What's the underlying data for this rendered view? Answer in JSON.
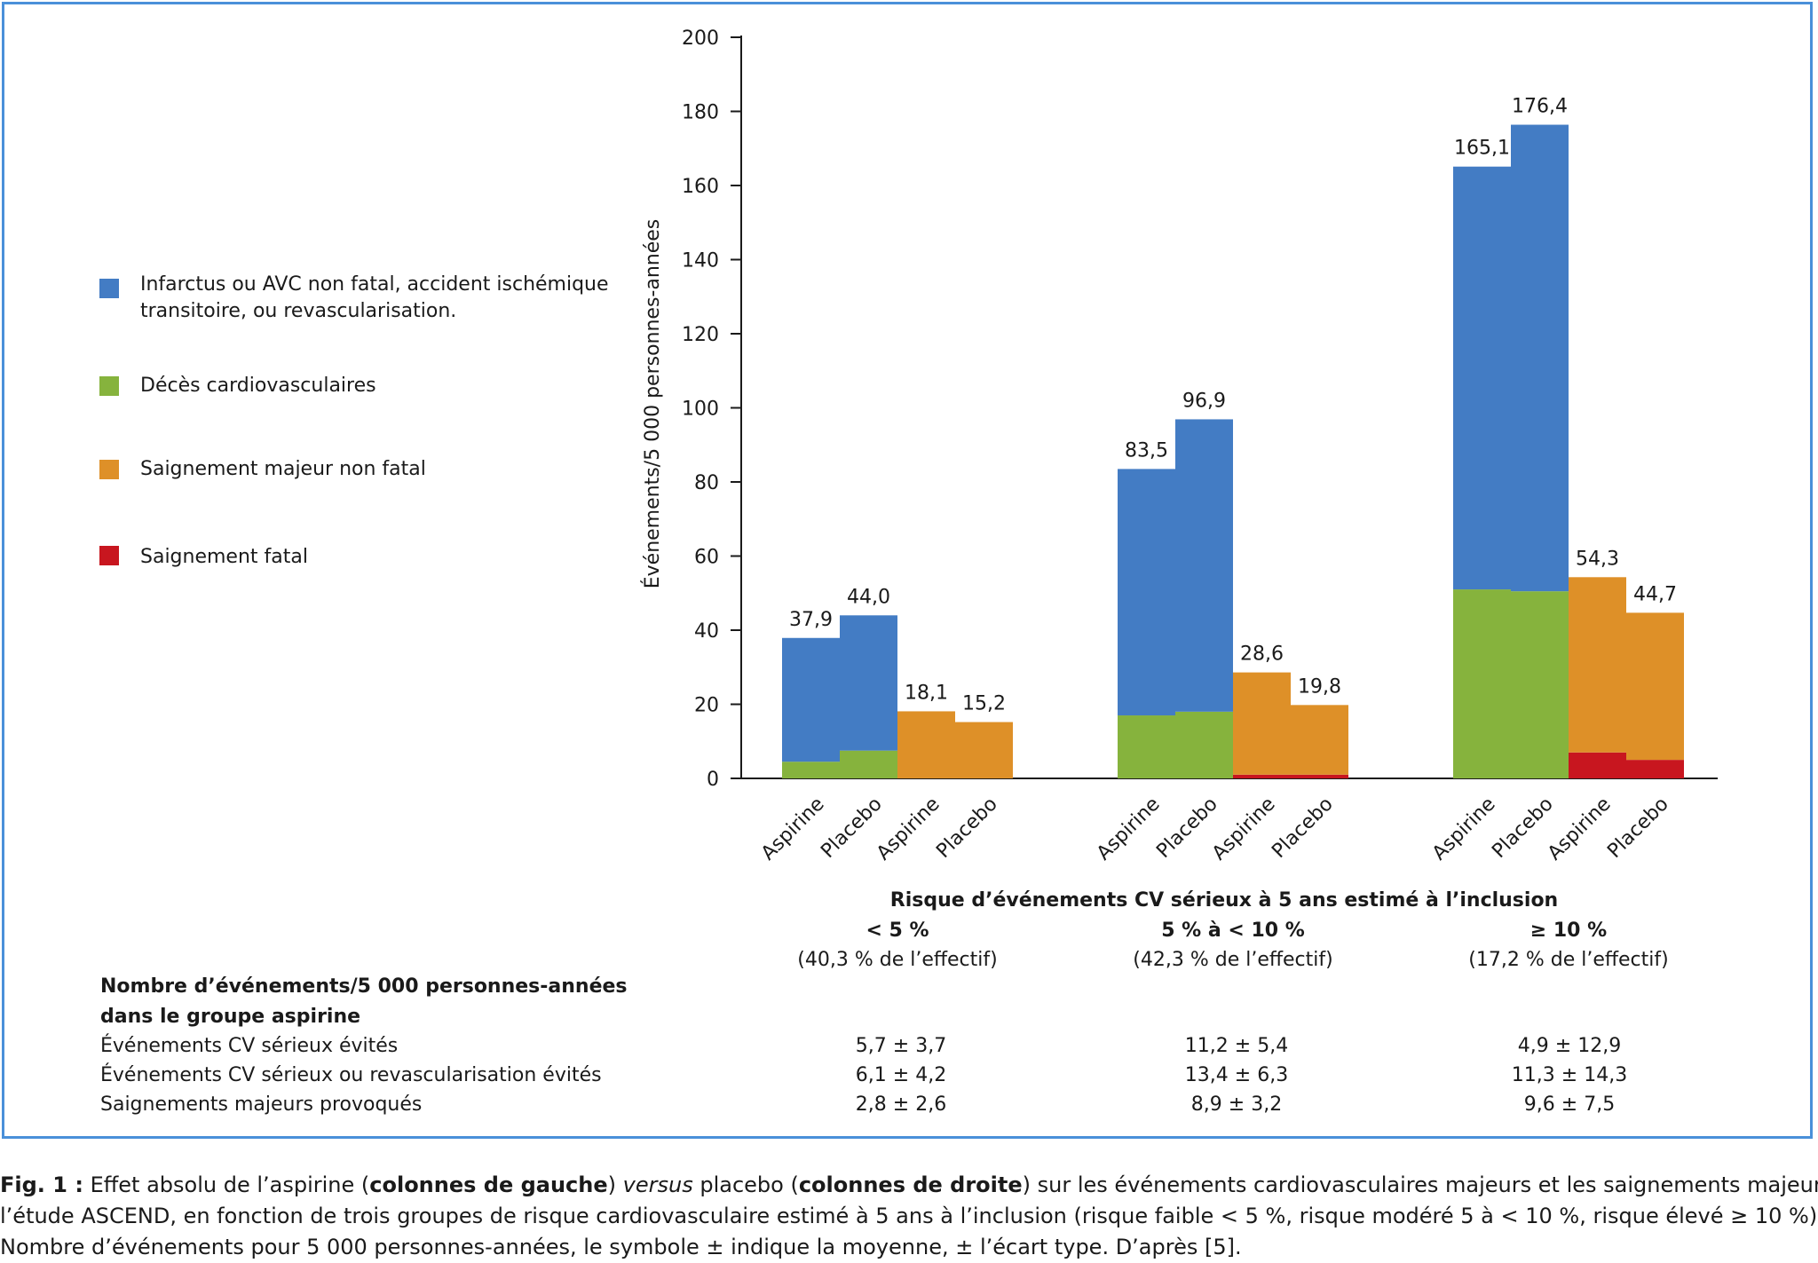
{
  "legend": [
    {
      "key": "blue",
      "color": "#437cc4",
      "text": "Infarctus ou AVC non fatal, accident ischémique transitoire, ou revascularisation."
    },
    {
      "key": "green",
      "color": "#86b33d",
      "text": "Décès cardiovasculaires"
    },
    {
      "key": "orange",
      "color": "#de9028",
      "text": "Saignement majeur non fatal"
    },
    {
      "key": "red",
      "color": "#c8161f",
      "text": "Saignement fatal"
    }
  ],
  "chart_data": {
    "type": "bar",
    "stacked": true,
    "ylabel": "Événements/5 000 personnes-années",
    "xlabel": "Risque d’événements CV sérieux à 5 ans estimé à l’inclusion",
    "ylim": [
      0,
      200
    ],
    "yticks": [
      0,
      20,
      40,
      60,
      80,
      100,
      120,
      140,
      160,
      180,
      200
    ],
    "groups": [
      {
        "label": "< 5 %",
        "sublabel": "(40,3 % de l’effectif)",
        "bars": [
          {
            "label": "Aspirine",
            "total_label": "37,9",
            "segments": {
              "green": 4.5,
              "blue": 33.4
            }
          },
          {
            "label": "Placebo",
            "total_label": "44,0",
            "segments": {
              "green": 7.5,
              "blue": 36.5
            }
          },
          {
            "label": "Aspirine",
            "total_label": "18,1",
            "segments": {
              "red": 0,
              "orange": 18.1
            }
          },
          {
            "label": "Placebo",
            "total_label": "15,2",
            "segments": {
              "red": 0,
              "orange": 15.2
            }
          }
        ]
      },
      {
        "label": "5 % à < 10 %",
        "sublabel": "(42,3 % de l’effectif)",
        "bars": [
          {
            "label": "Aspirine",
            "total_label": "83,5",
            "segments": {
              "green": 17.0,
              "blue": 66.5
            }
          },
          {
            "label": "Placebo",
            "total_label": "96,9",
            "segments": {
              "green": 18.0,
              "blue": 78.9
            }
          },
          {
            "label": "Aspirine",
            "total_label": "28,6",
            "segments": {
              "red": 1.0,
              "orange": 27.6
            }
          },
          {
            "label": "Placebo",
            "total_label": "19,8",
            "segments": {
              "red": 1.0,
              "orange": 18.8
            }
          }
        ]
      },
      {
        "label": "≥ 10 %",
        "sublabel": "(17,2 % de l’effectif)",
        "bars": [
          {
            "label": "Aspirine",
            "total_label": "165,1",
            "segments": {
              "green": 51.0,
              "blue": 114.1
            }
          },
          {
            "label": "Placebo",
            "total_label": "176,4",
            "segments": {
              "green": 50.5,
              "blue": 125.9
            }
          },
          {
            "label": "Aspirine",
            "total_label": "54,3",
            "segments": {
              "red": 7.0,
              "orange": 47.3
            }
          },
          {
            "label": "Placebo",
            "total_label": "44,7",
            "segments": {
              "red": 5.0,
              "orange": 39.7
            }
          }
        ]
      }
    ]
  },
  "table": {
    "title_line1": "Nombre d’événements/5 000 personnes-années",
    "title_line2": "dans le groupe aspirine",
    "rows": [
      {
        "label": "Événements CV sérieux évités",
        "values": [
          "5,7 ± 3,7",
          "11,2 ± 5,4",
          "4,9 ± 12,9"
        ]
      },
      {
        "label": "Événements CV sérieux ou revascularisation évités",
        "values": [
          "6,1 ± 4,2",
          "13,4 ± 6,3",
          "11,3 ± 14,3"
        ]
      },
      {
        "label": "Saignements majeurs provoqués",
        "values": [
          "2,8 ± 2,6",
          "8,9 ± 3,2",
          "9,6 ± 7,5"
        ]
      }
    ]
  },
  "caption": {
    "fig_label": "Fig. 1 :",
    "t1": " Effet absolu de l’aspirine (",
    "b1": "colonnes de gauche",
    "t2": ") ",
    "i1": "versus",
    "t3": " placebo (",
    "b2": "colonnes de droite",
    "t4": ") sur les événements cardiovasculaires majeurs et les saignements majeurs dans",
    "line2": "l’étude ASCEND, en fonction de trois groupes de risque cardiovasculaire estimé à 5 ans à l’inclusion (risque faible < 5 %, risque modéré 5 à < 10 %, risque élevé ≥ 10 %).",
    "line3": "Nombre d’événements pour 5 000 personnes-années, le symbole ± indique la moyenne, ± l’écart type. D’après [5]."
  }
}
